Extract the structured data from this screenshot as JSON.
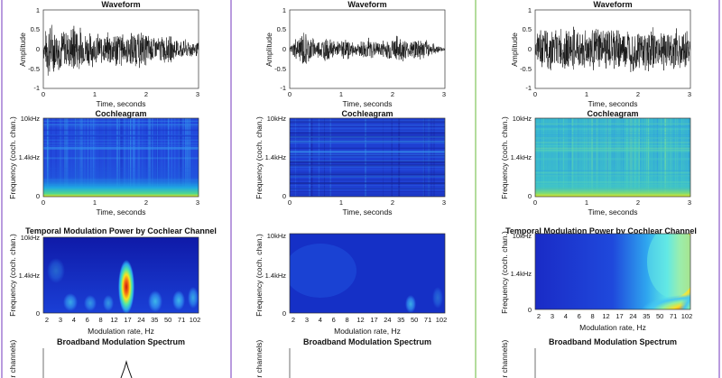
{
  "chart_data": [
    {
      "type": "line",
      "panel": "waveform",
      "column": 1,
      "title": "Waveform",
      "xlabel": "Time, seconds",
      "ylabel": "Amplitude",
      "xlim": [
        0,
        3
      ],
      "ylim": [
        -1,
        1
      ],
      "xticks": [
        "0",
        "1",
        "2",
        "3"
      ],
      "yticks": [
        "1",
        "0.5",
        "0",
        "-0.5",
        "-1"
      ],
      "grid": false,
      "envelope": {
        "x": [
          0,
          0.1,
          0.2,
          0.3,
          0.5,
          0.6,
          0.8,
          1.0,
          1.2,
          1.4,
          1.6,
          1.8,
          2.0,
          2.2,
          2.4,
          2.6,
          2.8,
          3.0
        ],
        "amplitude": [
          0.2,
          0.9,
          0.7,
          0.6,
          0.55,
          0.8,
          0.5,
          0.45,
          0.4,
          0.6,
          0.4,
          0.55,
          0.45,
          0.35,
          0.4,
          0.3,
          0.25,
          0.2
        ]
      }
    },
    {
      "type": "line",
      "panel": "waveform",
      "column": 2,
      "title": "Waveform",
      "xlabel": "Time, seconds",
      "ylabel": "Amplitude",
      "xlim": [
        0,
        3
      ],
      "ylim": [
        -1,
        1
      ],
      "xticks": [
        "0",
        "1",
        "2",
        "3"
      ],
      "yticks": [
        "1",
        "0.5",
        "0",
        "-0.5",
        "-1"
      ],
      "grid": false,
      "envelope": {
        "x": [
          0,
          0.1,
          0.3,
          0.5,
          0.7,
          0.9,
          1.1,
          1.3,
          1.5,
          1.7,
          1.9,
          2.1,
          2.3,
          2.5,
          2.7,
          2.9,
          3.0
        ],
        "amplitude": [
          0.05,
          0.3,
          0.55,
          0.25,
          0.35,
          0.2,
          0.3,
          0.15,
          0.35,
          0.2,
          0.3,
          0.4,
          0.25,
          0.35,
          0.2,
          0.1,
          0.02
        ]
      }
    },
    {
      "type": "line",
      "panel": "waveform",
      "column": 3,
      "title": "Waveform",
      "xlabel": "Time, seconds",
      "ylabel": "Amplitude",
      "xlim": [
        0,
        3
      ],
      "ylim": [
        -1,
        1
      ],
      "xticks": [
        "0",
        "1",
        "2",
        "3"
      ],
      "yticks": [
        "1",
        "0.5",
        "0",
        "-0.5",
        "-1"
      ],
      "grid": false,
      "envelope": {
        "x": [
          0,
          0.05,
          0.5,
          1.0,
          1.5,
          2.0,
          2.5,
          2.95,
          3.0
        ],
        "amplitude": [
          0.1,
          0.55,
          0.6,
          0.6,
          0.6,
          0.6,
          0.6,
          0.55,
          0.1
        ]
      }
    },
    {
      "type": "heatmap",
      "panel": "cochleagram",
      "column": 1,
      "title": "Cochleagram",
      "xlabel": "Time, seconds",
      "ylabel": "Frequency (coch. chan.)",
      "xlim": [
        0,
        3
      ],
      "xticks": [
        "0",
        "1",
        "2",
        "3"
      ],
      "yticks": [
        "10kHz",
        "1.4kHz",
        "0"
      ],
      "colormap": "jet",
      "description_values": "low-frequency band strongest near 0 Hz, broadband energy elsewhere"
    },
    {
      "type": "heatmap",
      "panel": "cochleagram",
      "column": 2,
      "title": "Cochleagram",
      "xlabel": "Time, seconds",
      "ylabel": "Frequency (coch. chan.)",
      "xlim": [
        0,
        3
      ],
      "xticks": [
        "0",
        "1",
        "2",
        "3"
      ],
      "yticks": [
        "10kHz",
        "1.4kHz",
        "0"
      ],
      "colormap": "jet"
    },
    {
      "type": "heatmap",
      "panel": "cochleagram",
      "column": 3,
      "title": "Cochleagram",
      "xlabel": "Time, seconds",
      "ylabel": "Frequency (coch. chan.)",
      "xlim": [
        0,
        3
      ],
      "xticks": [
        "0",
        "1",
        "2",
        "3"
      ],
      "yticks": [
        "10kHz",
        "1.4kHz",
        "0"
      ],
      "colormap": "jet"
    },
    {
      "type": "heatmap",
      "panel": "modulation",
      "column": 1,
      "title": "Temporal Modulation Power by Cochlear Channel",
      "xlabel": "Modulation rate, Hz",
      "ylabel": "Frequency (coch. chan.)",
      "xticks": [
        "2",
        "3",
        "4",
        "6",
        "8",
        "12",
        "17",
        "24",
        "35",
        "50",
        "71",
        "102"
      ],
      "yticks": [
        "10kHz",
        "1.4kHz",
        "0"
      ],
      "colormap": "jet"
    },
    {
      "type": "heatmap",
      "panel": "modulation",
      "column": 2,
      "title": "",
      "xlabel": "Modulation rate, Hz",
      "ylabel": "Frequency (coch. chan.)",
      "xticks": [
        "2",
        "3",
        "4",
        "6",
        "8",
        "12",
        "17",
        "24",
        "35",
        "50",
        "71",
        "102"
      ],
      "yticks": [
        "10kHz",
        "1.4kHz",
        "0"
      ],
      "colormap": "jet"
    },
    {
      "type": "heatmap",
      "panel": "modulation",
      "column": 3,
      "title": "Temporal Modulation Power by Cochlear Channel",
      "xlabel": "Modulation rate, Hz",
      "ylabel": "Frequency (coch. chan.)",
      "xticks": [
        "2",
        "3",
        "4",
        "6",
        "8",
        "12",
        "17",
        "24",
        "35",
        "50",
        "71",
        "102"
      ],
      "yticks": [
        "10kHz",
        "1.4kHz",
        "0"
      ],
      "colormap": "jet"
    },
    {
      "type": "line",
      "panel": "broadband",
      "column": 1,
      "title": "Broadband Modulation Spectrum",
      "ylabel": "ar channels)"
    },
    {
      "type": "line",
      "panel": "broadband",
      "column": 2,
      "title": "Broadband Modulation Spectrum",
      "ylabel": "ar channels)"
    },
    {
      "type": "line",
      "panel": "broadband",
      "column": 3,
      "title": "Broadband Modulation Spectrum",
      "ylabel": "ar channels)"
    }
  ]
}
